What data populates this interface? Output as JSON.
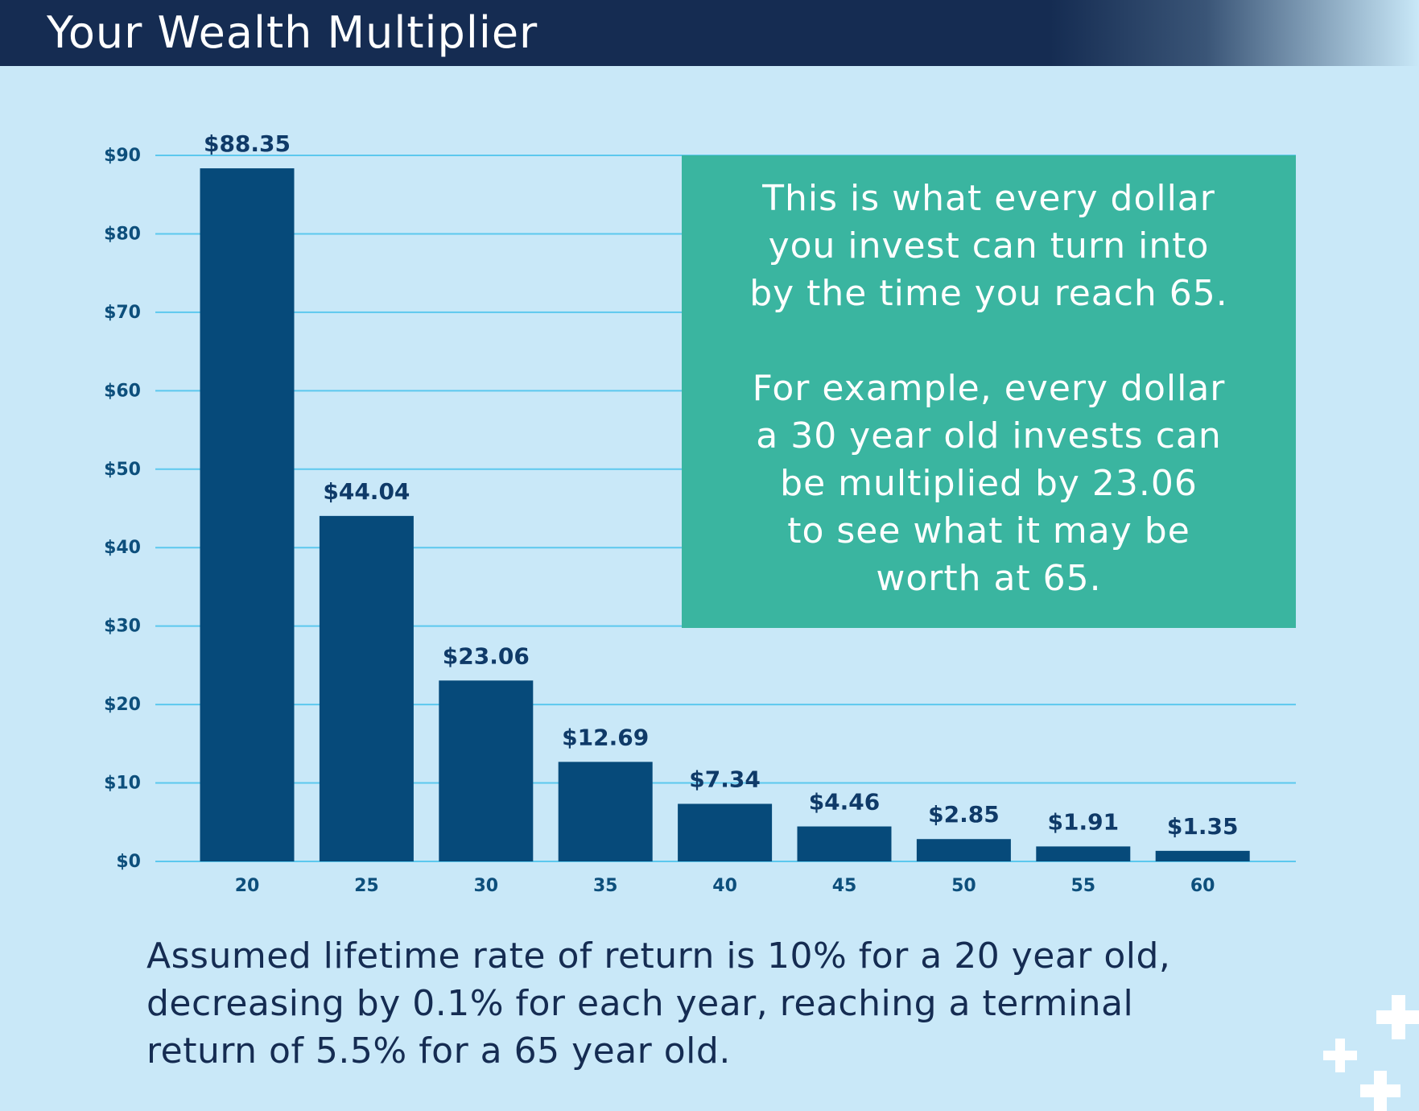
{
  "header": {
    "title": "Your Wealth Multiplier"
  },
  "callout": {
    "paragraph1": "This is what every dollar\nyou invest can turn into\nby the time you reach 65.",
    "paragraph2": "For example, every dollar\na 30 year old invests can\nbe multiplied by 23.06\nto see what it may be\nworth at 65."
  },
  "footnote": "Assumed lifetime rate of return is 10% for a 20 year old,\ndecreasing by 0.1% for each year, reaching a terminal\nreturn of 5.5% for a 65 year old.",
  "colors": {
    "background": "#c9e8f8",
    "header": "#152c52",
    "bar": "#064a7a",
    "gridline": "#5cc8ee",
    "callout": "#3ab5a0",
    "axis_label": "#0d4f7c",
    "value_label": "#0f3a68"
  },
  "decorations": [
    "plus-icon",
    "plus-icon",
    "plus-icon"
  ],
  "chart_data": {
    "type": "bar",
    "title": "Your Wealth Multiplier",
    "xlabel": "",
    "ylabel": "",
    "categories": [
      "20",
      "25",
      "30",
      "35",
      "40",
      "45",
      "50",
      "55",
      "60"
    ],
    "values": [
      88.35,
      44.04,
      23.06,
      12.69,
      7.34,
      4.46,
      2.85,
      1.91,
      1.35
    ],
    "value_labels": [
      "$88.35",
      "$44.04",
      "$23.06",
      "$12.69",
      "$7.34",
      "$4.46",
      "$2.85",
      "$1.91",
      "$1.35"
    ],
    "y_ticks": [
      0,
      10,
      20,
      30,
      40,
      50,
      60,
      70,
      80,
      90
    ],
    "y_tick_labels": [
      "$0",
      "$10",
      "$20",
      "$30",
      "$40",
      "$50",
      "$60",
      "$70",
      "$80",
      "$90"
    ],
    "ylim": [
      0,
      90
    ],
    "grid": true,
    "legend": "none"
  }
}
